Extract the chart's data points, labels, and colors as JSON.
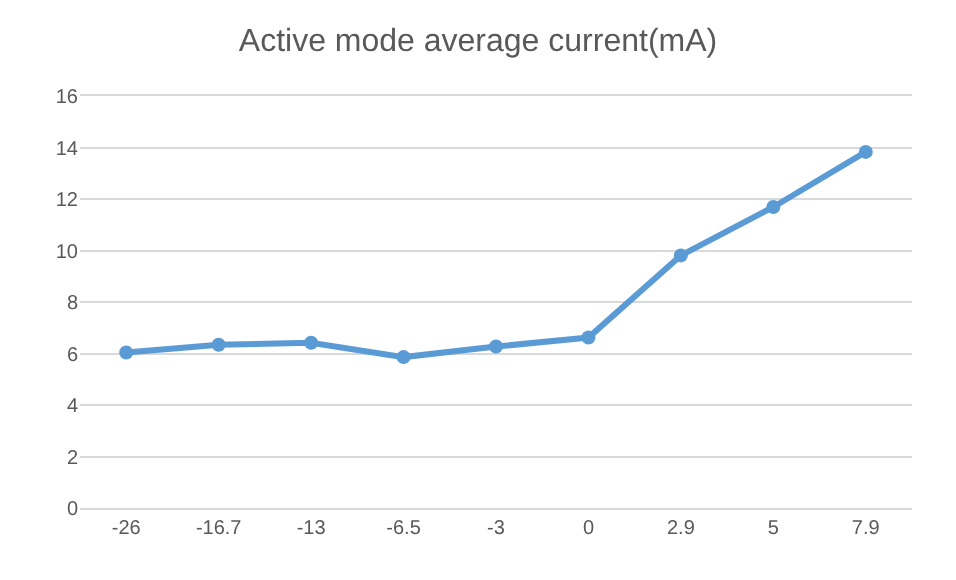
{
  "chart_data": {
    "type": "line",
    "title": "Active mode average current(mA)",
    "categories": [
      "-26",
      "-16.7",
      "-13",
      "-6.5",
      "-3",
      "0",
      "2.9",
      "5",
      "7.9"
    ],
    "series": [
      {
        "color": "#5b9bd5",
        "values": [
          6.04,
          6.34,
          6.42,
          5.86,
          6.27,
          6.62,
          9.81,
          11.69,
          13.83
        ]
      }
    ],
    "ylim": [
      0,
      16
    ],
    "yticks": [
      0,
      2,
      4,
      6,
      8,
      10,
      12,
      14,
      16
    ],
    "grid": "y",
    "marker": "circle",
    "line_style": "solid"
  }
}
